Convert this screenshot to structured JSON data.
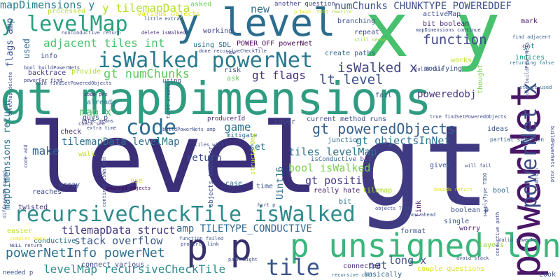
{
  "words": [
    {
      "text": "level",
      "color": "#3b2f7a"
    },
    {
      "text": "gt",
      "color": "#403a82"
    },
    {
      "text": "gt mapDimensions",
      "color": "#2f9c81"
    },
    {
      "text": "y level",
      "color": "#2c6c8e"
    },
    {
      "text": "x y",
      "color": "#47c16e"
    },
    {
      "text": "powerNet",
      "color": "#4a1668"
    },
    {
      "text": "p unsigned long",
      "color": "#3bb57c"
    },
    {
      "text": "p p",
      "color": "#37306e"
    },
    {
      "text": "recursiveCheckTile isWalked",
      "color": "#2f8a8c"
    },
    {
      "text": "y levelMap",
      "color": "#2a9e7c"
    },
    {
      "text": "isWalked powerNet",
      "color": "#2a7a8e"
    },
    {
      "text": "mapDimensions y",
      "color": "#2a7e8e"
    },
    {
      "text": "code",
      "color": "#2d698e"
    },
    {
      "text": "tile",
      "color": "#38558c"
    },
    {
      "text": "gt poweredObjects",
      "color": "#33608d"
    },
    {
      "text": "powerNet x",
      "color": "#3d4a88"
    },
    {
      "text": "powerNetInfo powerNet",
      "color": "#2e6e8e"
    },
    {
      "text": "levelMap recursiveCheckTile",
      "color": "#2b8a8c"
    },
    {
      "text": "isWalked x",
      "color": "#414487"
    },
    {
      "text": "function",
      "color": "#3f4889"
    },
    {
      "text": "adjacent tiles int",
      "color": "#4bc26c"
    },
    {
      "text": "gt numChunks",
      "color": "#5ec962"
    },
    {
      "text": "lt level",
      "color": "#3b528b"
    },
    {
      "text": "numChunks CHUNKTYPE_POWEREDDEF",
      "color": "#3c4f8a"
    },
    {
      "text": "y tilemapData",
      "color": "#b5de2b"
    },
    {
      "text": "map x",
      "color": "#4ac16d"
    },
    {
      "text": "game",
      "color": "#2c738e"
    },
    {
      "text": "make",
      "color": "#34618d"
    },
    {
      "text": "tilemapData levelMap",
      "color": "#2c728e"
    },
    {
      "text": "gt objectsInNet",
      "color": "#2b748e"
    },
    {
      "text": "tiles levelMap",
      "color": "#2c718e"
    },
    {
      "text": "gt flags",
      "color": "#472f7d"
    },
    {
      "text": "bool isWalked",
      "color": "#7ad151"
    },
    {
      "text": "gt position",
      "color": "#443983"
    },
    {
      "text": "tilemapData struct",
      "color": "#453781"
    },
    {
      "text": "amp TILETYPE_CONDUCTIVE",
      "color": "#31668e"
    },
    {
      "text": "stack overflow",
      "color": "#38588c"
    },
    {
      "text": "long x",
      "color": "#3d4e8a"
    },
    {
      "text": "net",
      "color": "#38588c"
    },
    {
      "text": "new",
      "color": "#2f6c8e"
    },
    {
      "text": "poweredobj",
      "color": "#46337f"
    },
    {
      "text": "return",
      "color": "#3e4a89"
    },
    {
      "text": "lt",
      "color": "#45337f"
    },
    {
      "text": "set",
      "color": "#2c738e"
    },
    {
      "text": "flags amp",
      "color": "#3b528b"
    },
    {
      "text": "used",
      "color": "#31678e"
    },
    {
      "text": "mapDimensions return",
      "color": "#2e6f8e"
    },
    {
      "text": "processed",
      "color": "#b8de29"
    },
    {
      "text": "various objects",
      "color": "#dde318"
    },
    {
      "text": "asked",
      "color": "#6ece58"
    },
    {
      "text": "another question",
      "color": "#404688"
    },
    {
      "text": "p bool",
      "color": "#e5e419"
    },
    {
      "text": "TODO rewrite",
      "color": "#addc30"
    },
    {
      "text": "activeMap",
      "color": "#3e4c8a"
    },
    {
      "text": "branching",
      "color": "#3b528b"
    },
    {
      "text": "bit boolean",
      "color": "#472c7a"
    },
    {
      "text": "mapDimensions continue",
      "color": "#3e4989"
    },
    {
      "text": "repeat",
      "color": "#3f4788"
    },
    {
      "text": "still seems",
      "color": "#95d840"
    },
    {
      "text": "mark",
      "color": "#48186a"
    },
    {
      "text": "find adjacent",
      "color": "#355f8d"
    },
    {
      "text": "got",
      "color": "#26828e"
    },
    {
      "text": "indices",
      "color": "#1f9e89"
    },
    {
      "text": "returning false",
      "color": "#2e6e8e"
    },
    {
      "text": "using SDL",
      "color": "#2d708e"
    },
    {
      "text": "POWER_OFF powerNet",
      "color": "#440154"
    },
    {
      "text": "working",
      "color": "#3f4788"
    },
    {
      "text": "create paths",
      "color": "#31668e"
    },
    {
      "text": "modifying",
      "color": "#3a548c"
    },
    {
      "text": "works",
      "color": "#bddf26"
    },
    {
      "text": "info",
      "color": "#3e4c8a"
    },
    {
      "text": "bool buildPowerNets",
      "color": "#3f4889"
    },
    {
      "text": "backtrace",
      "color": "#453781"
    },
    {
      "text": "powerFor find",
      "color": "#414487"
    },
    {
      "text": "void findSetPoweredObjects",
      "color": "#3e4989"
    },
    {
      "text": "provide",
      "color": "#b2dd2d"
    },
    {
      "text": "risk",
      "color": "#3e4a89"
    },
    {
      "text": "ask",
      "color": "#69cd5b"
    },
    {
      "text": "using",
      "color": "#3b528b"
    },
    {
      "text": "struct used",
      "color": "#2e6e8e"
    },
    {
      "text": "code pre",
      "color": "#472c7a"
    },
    {
      "text": "already",
      "color": "#2e6f8e"
    },
    {
      "text": "guys p",
      "color": "#3d4d8a"
    },
    {
      "text": "check see",
      "color": "#443983"
    },
    {
      "text": "extra time",
      "color": "#3e4c8a"
    },
    {
      "text": "check",
      "color": "#46307e"
    },
    {
      "text": "fail",
      "color": "#3a538b"
    },
    {
      "text": "true findSetPoweredObjects",
      "color": "#3e4a89"
    },
    {
      "text": "thought",
      "color": "#7ad151"
    },
    {
      "text": "ideas",
      "color": "#3a548c"
    },
    {
      "text": "partial solution",
      "color": "#35608d"
    },
    {
      "text": "producerId",
      "color": "#482475"
    },
    {
      "text": "current method",
      "color": "#3d4d8a"
    },
    {
      "text": "runs",
      "color": "#3e4989"
    },
    {
      "text": "mitigate",
      "color": "#31678e"
    },
    {
      "text": "cover",
      "color": "#3e4c8a"
    },
    {
      "text": "junction",
      "color": "#2f6c8e"
    },
    {
      "text": "isConductive bit",
      "color": "#34608d"
    },
    {
      "text": "walk",
      "color": "#c2df23"
    },
    {
      "text": "given",
      "color": "#3b518b"
    },
    {
      "text": "will fail",
      "color": "#3e4c8a"
    },
    {
      "text": "array",
      "color": "#3d4e8a"
    },
    {
      "text": "reaches",
      "color": "#3d4e8a"
    },
    {
      "text": "use",
      "color": "#dae319"
    },
    {
      "text": "case",
      "color": "#2c718e"
    },
    {
      "text": "time",
      "color": "#3a548c"
    },
    {
      "text": "really hate",
      "color": "#482173"
    },
    {
      "text": "tilemap",
      "color": "#addc30"
    },
    {
      "text": "bool",
      "color": "#31678e"
    },
    {
      "text": "bit",
      "color": "#2e6f8e"
    },
    {
      "text": "hurt p",
      "color": "#3e4c8a"
    },
    {
      "text": "boolean p",
      "color": "#3b528b"
    },
    {
      "text": "link",
      "color": "#48186a"
    },
    {
      "text": "single",
      "color": "#3a538b"
    },
    {
      "text": "twisted",
      "color": "#45337f"
    },
    {
      "text": "easier",
      "color": "#bddf26"
    },
    {
      "text": "conductive",
      "color": "#2c718e"
    },
    {
      "text": "function failed",
      "color": "#3a548c"
    },
    {
      "text": "properly link",
      "color": "#3d4e8a"
    },
    {
      "text": "format",
      "color": "#3b518b"
    },
    {
      "text": "worry",
      "color": "#482475"
    },
    {
      "text": "layers",
      "color": "#90d743"
    },
    {
      "text": "connect various",
      "color": "#3e4a89"
    },
    {
      "text": "connected",
      "color": "#472a7a"
    },
    {
      "text": "couple questions",
      "color": "#d8e219"
    },
    {
      "text": "basically",
      "color": "#32648e"
    },
    {
      "text": "recursive call",
      "color": "#2e6e8e"
    },
    {
      "text": "Look",
      "color": "#3b518b"
    },
    {
      "text": "needed p",
      "color": "#3b528b"
    },
    {
      "text": "NULL return",
      "color": "#3e4989"
    },
    {
      "text": "complex maps",
      "color": "#fde725"
    },
    {
      "text": "powered objects",
      "color": "#440154"
    },
    {
      "text": "Uint16",
      "color": "#2c718e"
    },
    {
      "text": "objects TODO",
      "color": "#3e4c8a"
    },
    {
      "text": "know ahead",
      "color": "#3d4d8a"
    },
    {
      "text": "avoid stack",
      "color": "#3e4989"
    },
    {
      "text": "buildPowerNets amp",
      "color": "#3e4c8a"
    },
    {
      "text": "tiles will",
      "color": "#3e4c8a"
    },
    {
      "text": "objects together",
      "color": "#3e4989"
    },
    {
      "text": "structs One",
      "color": "#bddf26"
    },
    {
      "text": "little extra",
      "color": "#3a548c"
    },
    {
      "text": "nonconductive return",
      "color": "#3e4c8a"
    },
    {
      "text": "delete isWalked",
      "color": "#472a7a"
    },
    {
      "text": "done recursiveCheckTile",
      "color": "#3e4a89"
    },
    {
      "text": "now",
      "color": "#3f4788"
    },
    {
      "text": "Valid tile",
      "color": "#404688"
    },
    {
      "text": "false means",
      "color": "#414487"
    },
    {
      "text": "path might",
      "color": "#3d4e8a"
    },
    {
      "text": "bounds return",
      "color": "#e5e419"
    },
    {
      "text": "supplyType TODO",
      "color": "#3e4c8a"
    },
    {
      "text": "conductive path",
      "color": "#404688"
    },
    {
      "text": "Valid powerNet",
      "color": "#3e4c8a"
    },
    {
      "text": "buildPowerNets void",
      "color": "#3e4c8a"
    },
    {
      "text": "continue isWalked",
      "color": "#3e4c8a"
    },
    {
      "text": "code add",
      "color": "#3e4989"
    },
    {
      "text": "difference speed",
      "color": "#3d4e8a"
    },
    {
      "text": "void buildPowerNets",
      "color": "#3e4c8a"
    },
    {
      "text": "levelMap delete",
      "color": "#3e4c8a"
    },
    {
      "text": "first create",
      "color": "#3e4c8a"
    },
    {
      "text": "unsigned",
      "color": "#3e4c8a"
    }
  ]
}
